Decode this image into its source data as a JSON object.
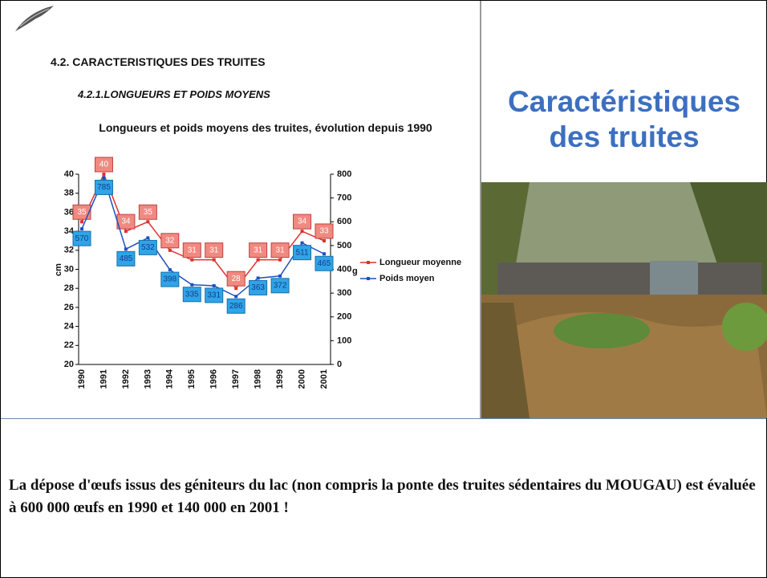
{
  "slide": {
    "section": "4.2. CARACTERISTIQUES DES TRUITES",
    "subsection": "4.2.1.LONGUEURS ET POIDS MOYENS",
    "heading": "Caractéristiques des truites",
    "text": "La dépose d'œufs issus des géniteurs du lac (non compris la ponte des truites sédentaires du MOUGAU) est évaluée à 600 000 œufs en 1990 et 140 000 en 2001 !"
  },
  "chart_data": {
    "type": "line",
    "title": "Longueurs et poids moyens des truites, évolution depuis 1990",
    "categories": [
      "1990",
      "1991",
      "1992",
      "1993",
      "1994",
      "1995",
      "1996",
      "1997",
      "1998",
      "1999",
      "2000",
      "2001"
    ],
    "series": [
      {
        "name": "Longueur moyenne",
        "color": "#e0302e",
        "values": [
          35,
          40,
          34,
          35,
          32,
          31,
          31,
          28,
          31,
          31,
          34,
          33
        ]
      },
      {
        "name": "Poids moyen",
        "color": "#1f4fbf",
        "axis": "y2",
        "values": [
          570,
          785,
          485,
          532,
          398,
          335,
          331,
          286,
          363,
          372,
          511,
          465
        ]
      }
    ],
    "ylabel": "cm",
    "y2label": "g",
    "ylim": [
      20,
      40
    ],
    "yticks": [
      20,
      22,
      24,
      26,
      28,
      30,
      32,
      34,
      36,
      38,
      40
    ],
    "y2lim": [
      0,
      800
    ],
    "y2ticks": [
      0,
      100,
      200,
      300,
      400,
      500,
      600,
      700,
      800
    ],
    "legend": "right"
  }
}
